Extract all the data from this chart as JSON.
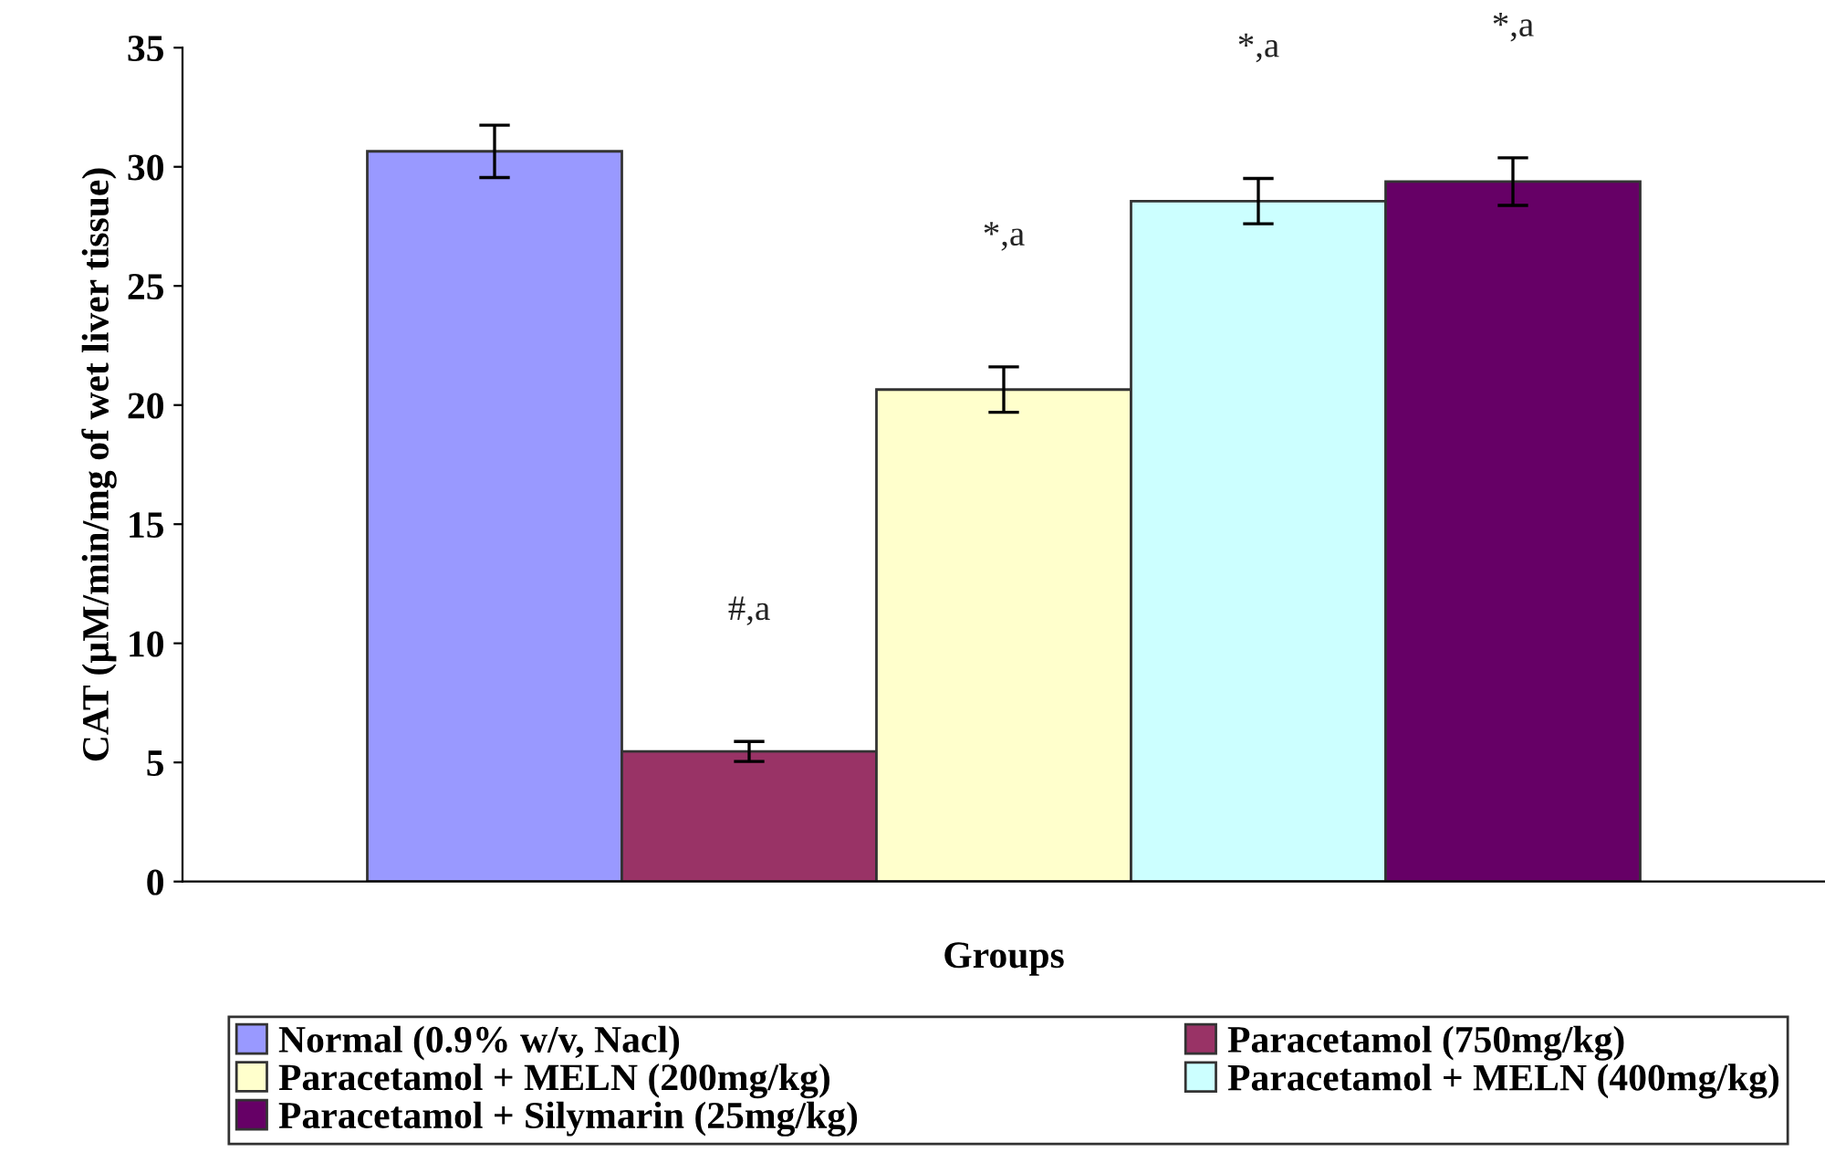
{
  "chart_data": {
    "type": "bar",
    "xlabel": "Groups",
    "ylabel": "CAT (µM/min/mg of wet liver tissue)",
    "categories": [
      null
    ],
    "series": [
      {
        "name": "Normal (0.9% w/v, Nacl)",
        "color": "#9999ff",
        "values": [
          30.65
        ],
        "errors": [
          1.1
        ]
      },
      {
        "name": "Paracetamol (750mg/kg)",
        "color": "#993366",
        "values": [
          5.46
        ],
        "errors": [
          0.42
        ]
      },
      {
        "name": "Paracetamol + MELN (200mg/kg)",
        "color": "#ffffcc",
        "values": [
          20.65
        ],
        "errors": [
          0.95
        ]
      },
      {
        "name": "Paracetamol + MELN (400mg/kg)",
        "color": "#ccffff",
        "values": [
          28.56
        ],
        "errors": [
          0.95
        ]
      },
      {
        "name": "Paracetamol + Silymarin (25mg/kg)",
        "color": "#660066",
        "values": [
          29.38
        ],
        "errors": [
          1.0
        ]
      }
    ],
    "annotations": [
      "#,a",
      "*,a",
      "*,a",
      "*,a"
    ],
    "ylim": [
      0,
      35
    ],
    "yticks": [
      0,
      5,
      10,
      15,
      20,
      25,
      30,
      35
    ],
    "grid": false,
    "legend": "bottom"
  }
}
